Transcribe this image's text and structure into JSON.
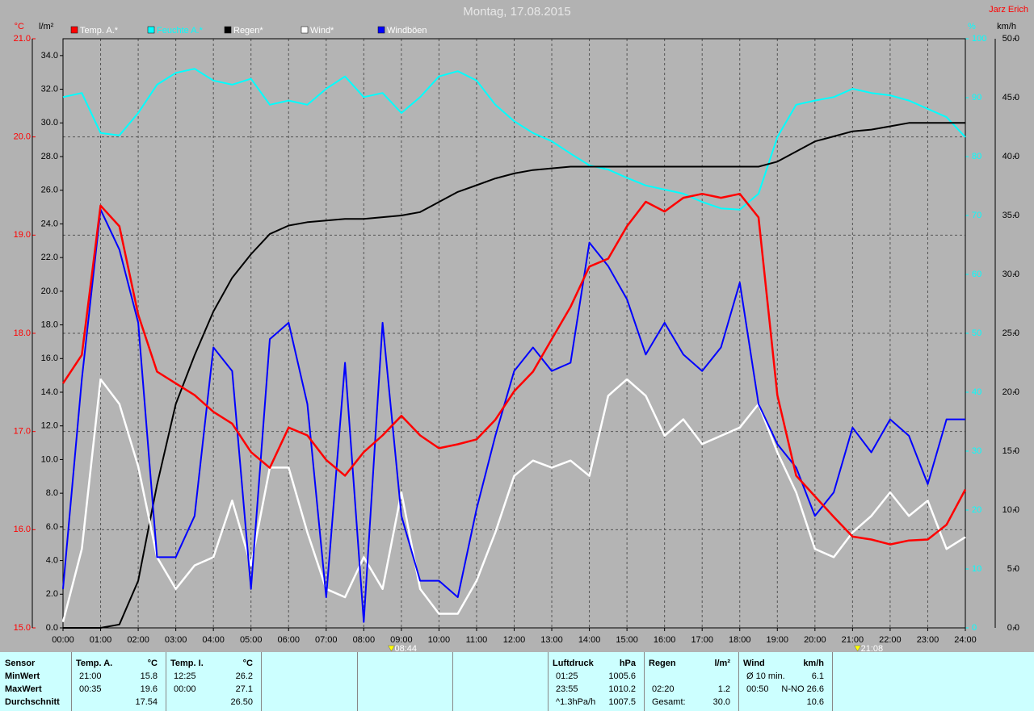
{
  "chart_data": {
    "type": "line",
    "title": "Montag, 17.08.2015",
    "author": "Jarz Erich",
    "x": [
      0,
      0.5,
      1,
      1.5,
      2,
      2.5,
      3,
      3.5,
      4,
      4.5,
      5,
      5.5,
      6,
      6.5,
      7,
      7.5,
      8,
      8.5,
      9,
      9.5,
      10,
      10.5,
      11,
      11.5,
      12,
      12.5,
      13,
      13.5,
      14,
      14.5,
      15,
      15.5,
      16,
      16.5,
      17,
      17.5,
      18,
      18.5,
      19,
      19.5,
      20,
      20.5,
      21,
      21.5,
      22,
      22.5,
      23,
      23.5,
      24
    ],
    "xlim": [
      0,
      24
    ],
    "xticks": [
      {
        "value": 0,
        "label": "00:00"
      },
      {
        "value": 1,
        "label": "01:00"
      },
      {
        "value": 2,
        "label": "02:00"
      },
      {
        "value": 3,
        "label": "03:00"
      },
      {
        "value": 4,
        "label": "04:00"
      },
      {
        "value": 5,
        "label": "05:00"
      },
      {
        "value": 6,
        "label": "06:00"
      },
      {
        "value": 7,
        "label": "07:00"
      },
      {
        "value": 8,
        "label": "08:00"
      },
      {
        "value": 9,
        "label": "09:00"
      },
      {
        "value": 10,
        "label": "10:00"
      },
      {
        "value": 11,
        "label": "11:00"
      },
      {
        "value": 12,
        "label": "12:00"
      },
      {
        "value": 13,
        "label": "13:00"
      },
      {
        "value": 14,
        "label": "14:00"
      },
      {
        "value": 15,
        "label": "15:00"
      },
      {
        "value": 16,
        "label": "16:00"
      },
      {
        "value": 17,
        "label": "17:00"
      },
      {
        "value": 18,
        "label": "18:00"
      },
      {
        "value": 19,
        "label": "19:00"
      },
      {
        "value": 20,
        "label": "20:00"
      },
      {
        "value": 21,
        "label": "21:00"
      },
      {
        "value": 22,
        "label": "22:00"
      },
      {
        "value": 23,
        "label": "23:00"
      },
      {
        "value": 24,
        "label": "24:00"
      }
    ],
    "ylabel": "°C",
    "ylim": [
      15,
      21
    ],
    "yticks": [
      {
        "value": 15,
        "label": "15.0"
      },
      {
        "value": 16,
        "label": "16.0"
      },
      {
        "value": 17,
        "label": "17.0"
      },
      {
        "value": 18,
        "label": "18.0"
      },
      {
        "value": 19,
        "label": "19.0"
      },
      {
        "value": 20,
        "label": "20.0"
      },
      {
        "value": 21,
        "label": "21.0"
      }
    ],
    "y2label": "l/m²",
    "y2lim": [
      0,
      35
    ],
    "y2ticks": [
      {
        "value": 0,
        "label": "0.0"
      },
      {
        "value": 2,
        "label": "2.0"
      },
      {
        "value": 4,
        "label": "4.0"
      },
      {
        "value": 6,
        "label": "6.0"
      },
      {
        "value": 8,
        "label": "8.0"
      },
      {
        "value": 10,
        "label": "10.0"
      },
      {
        "value": 12,
        "label": "12.0"
      },
      {
        "value": 14,
        "label": "14.0"
      },
      {
        "value": 16,
        "label": "16.0"
      },
      {
        "value": 18,
        "label": "18.0"
      },
      {
        "value": 20,
        "label": "20.0"
      },
      {
        "value": 22,
        "label": "22.0"
      },
      {
        "value": 24,
        "label": "24.0"
      },
      {
        "value": 26,
        "label": "26.0"
      },
      {
        "value": 28,
        "label": "28.0"
      },
      {
        "value": 30,
        "label": "30.0"
      },
      {
        "value": 32,
        "label": "32.0"
      },
      {
        "value": 34,
        "label": "34.0"
      }
    ],
    "y3label": "%",
    "y3lim": [
      0,
      100
    ],
    "y3ticks": [
      0,
      10,
      20,
      30,
      40,
      50,
      60,
      70,
      80,
      90,
      100
    ],
    "y4label": "km/h",
    "y4lim": [
      0,
      50
    ],
    "y4ticks": [
      {
        "value": 0,
        "label": "0.0"
      },
      {
        "value": 5,
        "label": "5.0"
      },
      {
        "value": 10,
        "label": "10.0"
      },
      {
        "value": 15,
        "label": "15.0"
      },
      {
        "value": 20,
        "label": "20.0"
      },
      {
        "value": 25,
        "label": "25.0"
      },
      {
        "value": 30,
        "label": "30.0"
      },
      {
        "value": 35,
        "label": "35.0"
      },
      {
        "value": 40,
        "label": "40.0"
      },
      {
        "value": 45,
        "label": "45.0"
      },
      {
        "value": 50,
        "label": "50.0"
      }
    ],
    "grid": true,
    "series": [
      {
        "name": "Temp. A.*",
        "color": "#ff0000",
        "axis": "y",
        "values": [
          17.49,
          17.78,
          19.3,
          19.09,
          18.19,
          17.61,
          17.49,
          17.37,
          17.2,
          17.08,
          16.79,
          16.63,
          17.04,
          16.96,
          16.71,
          16.55,
          16.79,
          16.96,
          17.16,
          16.96,
          16.83,
          16.87,
          16.92,
          17.12,
          17.41,
          17.61,
          17.94,
          18.27,
          18.68,
          18.76,
          19.09,
          19.34,
          19.24,
          19.38,
          19.42,
          19.38,
          19.42,
          19.18,
          17.37,
          16.55,
          16.34,
          16.13,
          15.93,
          15.9,
          15.85,
          15.89,
          15.9,
          16.05,
          16.41
        ]
      },
      {
        "name": "Feuchte A.*",
        "color": "#00ffff",
        "axis": "y3",
        "values": [
          90.1,
          90.8,
          84.0,
          83.6,
          87.4,
          92.2,
          94.2,
          94.9,
          92.9,
          92.2,
          93.2,
          88.8,
          89.5,
          88.8,
          91.5,
          93.6,
          90.1,
          90.8,
          87.4,
          90.1,
          93.6,
          94.5,
          92.9,
          88.8,
          86.0,
          84.0,
          82.6,
          80.5,
          78.5,
          77.8,
          76.4,
          75.1,
          74.4,
          73.7,
          72.3,
          71.2,
          71.0,
          73.7,
          83.3,
          88.8,
          89.5,
          90.1,
          91.5,
          90.8,
          90.4,
          89.5,
          88.1,
          86.7,
          83.3
        ]
      },
      {
        "name": "Regen*",
        "color": "#000000",
        "axis": "y2",
        "values": [
          0,
          0,
          0,
          0.2,
          2.8,
          8.5,
          13.3,
          16.2,
          18.8,
          20.8,
          22.2,
          23.4,
          23.9,
          24.1,
          24.2,
          24.3,
          24.3,
          24.4,
          24.5,
          24.7,
          25.3,
          25.9,
          26.3,
          26.7,
          27.0,
          27.2,
          27.3,
          27.4,
          27.4,
          27.4,
          27.4,
          27.4,
          27.4,
          27.4,
          27.4,
          27.4,
          27.4,
          27.4,
          27.7,
          28.3,
          28.9,
          29.2,
          29.5,
          29.6,
          29.8,
          30.0,
          30.0,
          30.0,
          30.0
        ]
      },
      {
        "name": "Wind*",
        "color": "#ffffff",
        "axis": "y4",
        "values": [
          0.5,
          6.7,
          21.1,
          19.0,
          13.7,
          6.0,
          3.3,
          5.3,
          6.0,
          10.8,
          5.3,
          13.6,
          13.6,
          8.1,
          3.3,
          2.6,
          6.0,
          3.3,
          11.5,
          3.3,
          1.2,
          1.2,
          4.0,
          8.1,
          12.9,
          14.2,
          13.6,
          14.2,
          12.9,
          19.7,
          21.1,
          19.7,
          16.3,
          17.7,
          15.6,
          16.3,
          17.0,
          19.0,
          14.9,
          11.5,
          6.7,
          6.0,
          8.1,
          9.5,
          11.5,
          9.5,
          10.8,
          6.7,
          7.7
        ]
      },
      {
        "name": "Windböen",
        "color": "#0000ff",
        "axis": "y4",
        "values": [
          3.3,
          21.1,
          35.5,
          32.1,
          25.9,
          6.0,
          6.0,
          9.5,
          23.8,
          21.8,
          3.3,
          24.5,
          25.9,
          19.0,
          2.6,
          22.5,
          0.5,
          25.9,
          9.5,
          4.0,
          4.0,
          2.6,
          10.1,
          16.3,
          21.8,
          23.8,
          21.8,
          22.5,
          32.7,
          30.7,
          27.9,
          23.2,
          25.9,
          23.2,
          21.8,
          23.8,
          29.3,
          19.0,
          15.6,
          13.6,
          9.5,
          11.5,
          17.0,
          14.9,
          17.7,
          16.3,
          12.2,
          17.7,
          17.7
        ]
      }
    ],
    "annotations": [
      {
        "x": 8.7333,
        "label": "08:44"
      },
      {
        "x": 21.1333,
        "label": "21:08"
      }
    ]
  },
  "stats": {
    "columns": [
      {
        "header": "Sensor",
        "rows": [
          [
            "MinWert"
          ],
          [
            "MaxWert"
          ],
          [
            "Durchschnitt"
          ]
        ]
      },
      {
        "header": "Temp. A.",
        "unit": "°C",
        "rows": [
          [
            "21:00",
            "15.8"
          ],
          [
            "00:35",
            "19.6"
          ],
          [
            null,
            "17.54"
          ]
        ]
      },
      {
        "header": "Temp. I.",
        "unit": "°C",
        "rows": [
          [
            "12:25",
            "26.2"
          ],
          [
            "00:00",
            "27.1"
          ],
          [
            null,
            "26.50"
          ]
        ]
      },
      {
        "header": "Luftdruck",
        "unit": "hPa",
        "rows": [
          [
            "01:25",
            "1005.6"
          ],
          [
            "23:55",
            "1010.2"
          ],
          [
            "^1.3hPa/h",
            "1007.5"
          ]
        ]
      },
      {
        "header": "Regen",
        "unit": "l/m²",
        "rows": [
          [
            null,
            null
          ],
          [
            "02:20",
            "1.2"
          ],
          [
            "Gesamt:",
            "30.0"
          ]
        ]
      },
      {
        "header": "Wind",
        "unit": "km/h",
        "rows": [
          [
            "Ø 10 min.",
            "6.1"
          ],
          [
            "00:50",
            "N-NO 26.6"
          ],
          [
            null,
            "10.6"
          ]
        ]
      }
    ]
  }
}
